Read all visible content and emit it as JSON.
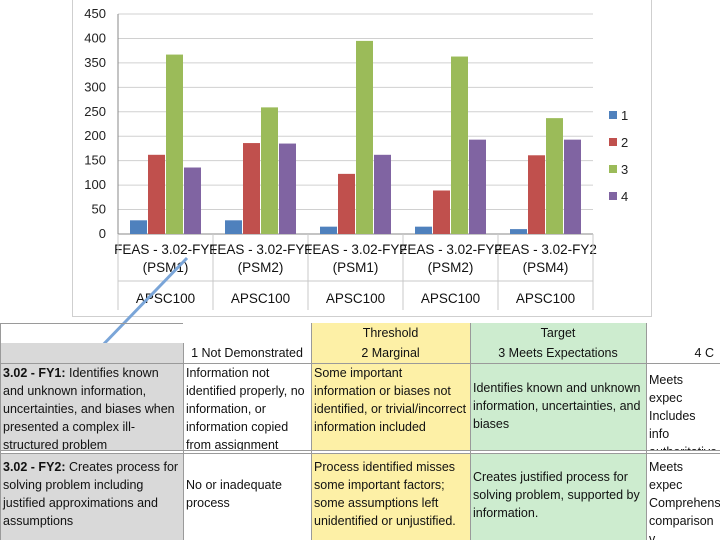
{
  "chart_data": {
    "type": "bar",
    "categories": [
      {
        "line1": "FEAS - 3.02-FY1",
        "line2": "(PSM1)",
        "group": "APSC100"
      },
      {
        "line1": "FEAS - 3.02-FY1",
        "line2": "(PSM2)",
        "group": "APSC100"
      },
      {
        "line1": "FEAS - 3.02-FY2",
        "line2": "(PSM1)",
        "group": "APSC100"
      },
      {
        "line1": "FEAS - 3.02-FY2",
        "line2": "(PSM2)",
        "group": "APSC100"
      },
      {
        "line1": "FEAS - 3.02-FY2",
        "line2": "(PSM4)",
        "group": "APSC100"
      }
    ],
    "series": [
      {
        "name": "1",
        "color": "#4f81bd",
        "values": [
          28,
          28,
          15,
          15,
          10
        ]
      },
      {
        "name": "2",
        "color": "#c0504d",
        "values": [
          162,
          186,
          123,
          89,
          161
        ]
      },
      {
        "name": "3",
        "color": "#9bbb59",
        "values": [
          367,
          259,
          395,
          363,
          237
        ]
      },
      {
        "name": "4",
        "color": "#8064a2",
        "values": [
          136,
          185,
          162,
          193,
          193
        ]
      }
    ],
    "ylim": [
      0,
      450
    ],
    "yticks": [
      "0",
      "50",
      "100",
      "150",
      "200",
      "250",
      "300",
      "350",
      "400",
      "450"
    ],
    "legend_position": "right"
  },
  "rubric": {
    "header": {
      "threshold": "Threshold",
      "target": "Target",
      "col1": "1   Not Demonstrated",
      "col2": "2   Marginal",
      "col3": "3   Meets Expectations",
      "col4": "4   C"
    },
    "rows": [
      {
        "code": "3.02 - FY1:",
        "criterion": " Identifies known and unknown information, uncertainties, and biases when presented a complex ill-structured problem",
        "c1": "Information not identified properly, no information, or information copied from assignment",
        "c2": "Some important information or biases not identified, or trivial/incorrect information included",
        "c3": "Identifies known and unknown information, uncertainties, and biases",
        "c4": "Meets expec Includes info authoritative process, mod"
      },
      {
        "code": "3.02 - FY2:",
        "criterion": " Creates process for solving problem including justified approximations and assumptions",
        "c1": "No or inadequate process",
        "c2": "Process identified misses some important factors; some assumptions left unidentified or unjustified.",
        "c3": "Creates justified process for solving problem, supported by information.",
        "c4": "Meets expec Comprehens comparison v approaches"
      }
    ]
  }
}
